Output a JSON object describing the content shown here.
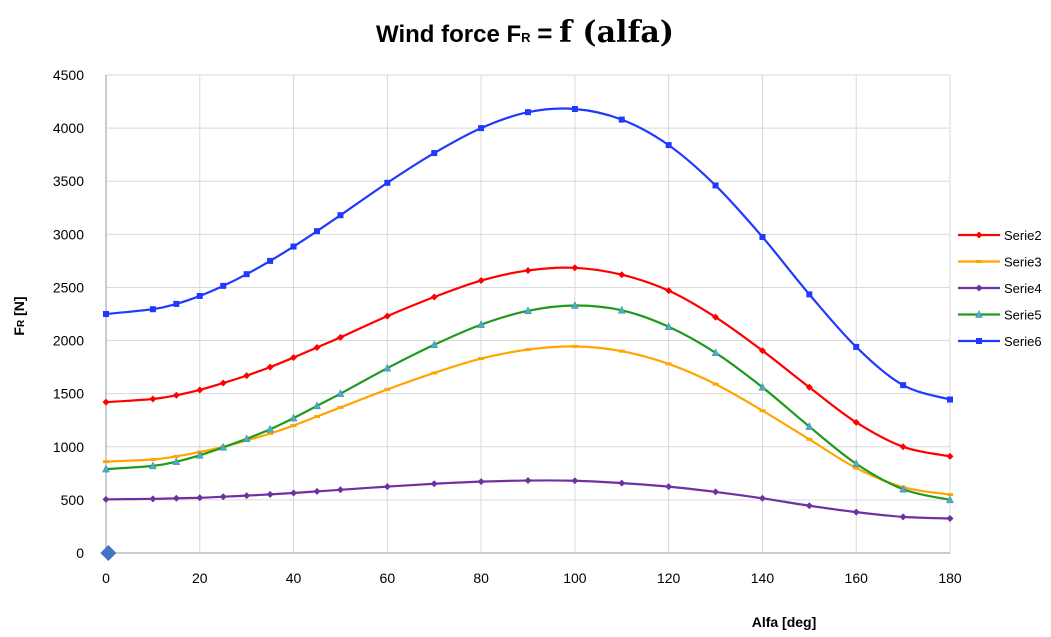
{
  "chart_data": {
    "type": "line",
    "title": {
      "text": "Wind force",
      "symbol": "F",
      "symbol_sub": "R",
      "equals": "=",
      "rhs": "f (alfa)"
    },
    "xlabel": "Alfa  [deg]",
    "ylabel": {
      "symbol": "F",
      "symbol_sub": "R",
      "unit": "[N]"
    },
    "xlim": [
      0,
      180
    ],
    "ylim": [
      0,
      4500
    ],
    "xticks": [
      0,
      20,
      40,
      60,
      80,
      100,
      120,
      140,
      160,
      180
    ],
    "yticks": [
      0,
      500,
      1000,
      1500,
      2000,
      2500,
      3000,
      3500,
      4000,
      4500
    ],
    "grid": "vertical and horizontal",
    "legend_position": "right",
    "extra_point": {
      "x": 0.5,
      "y": 0,
      "color": "#4472c4",
      "marker": "diamond"
    },
    "series": [
      {
        "name": "Serie2",
        "color": "#ff0000",
        "marker": "diamond",
        "x": [
          0,
          10,
          15,
          20,
          25,
          30,
          35,
          40,
          45,
          50,
          60,
          70,
          80,
          90,
          100,
          110,
          120,
          130,
          140,
          150,
          160,
          170,
          180
        ],
        "y": [
          1420,
          1450,
          1485,
          1535,
          1600,
          1670,
          1750,
          1840,
          1935,
          2030,
          2230,
          2410,
          2565,
          2660,
          2685,
          2620,
          2470,
          2220,
          1905,
          1560,
          1230,
          1000,
          910
        ]
      },
      {
        "name": "Serie3",
        "color": "#ffa500",
        "marker": "dash",
        "x": [
          0,
          10,
          15,
          20,
          25,
          30,
          35,
          40,
          45,
          50,
          60,
          70,
          80,
          90,
          100,
          110,
          120,
          130,
          140,
          150,
          160,
          170,
          180
        ],
        "y": [
          860,
          880,
          910,
          950,
          1000,
          1060,
          1125,
          1200,
          1285,
          1370,
          1540,
          1695,
          1830,
          1915,
          1945,
          1900,
          1780,
          1590,
          1340,
          1070,
          800,
          620,
          550
        ]
      },
      {
        "name": "Serie4",
        "color": "#7030a0",
        "marker": "diamond",
        "x": [
          0,
          10,
          15,
          20,
          25,
          30,
          35,
          40,
          45,
          50,
          60,
          70,
          80,
          90,
          100,
          110,
          120,
          130,
          140,
          150,
          160,
          170,
          180
        ],
        "y": [
          505,
          510,
          515,
          520,
          530,
          540,
          552,
          565,
          580,
          595,
          625,
          652,
          672,
          682,
          680,
          658,
          625,
          575,
          515,
          445,
          385,
          340,
          325
        ]
      },
      {
        "name": "Serie5",
        "color": "#1e9a1e",
        "marker": "triangle",
        "x": [
          0,
          10,
          15,
          20,
          25,
          30,
          35,
          40,
          45,
          50,
          60,
          70,
          80,
          90,
          100,
          110,
          120,
          130,
          140,
          150,
          160,
          170,
          180
        ],
        "y": [
          790,
          820,
          860,
          920,
          995,
          1075,
          1165,
          1270,
          1385,
          1500,
          1740,
          1960,
          2150,
          2280,
          2330,
          2285,
          2130,
          1885,
          1560,
          1190,
          840,
          600,
          500
        ]
      },
      {
        "name": "Serie6",
        "color": "#1f3aff",
        "marker": "square",
        "x": [
          0,
          10,
          15,
          20,
          25,
          30,
          35,
          40,
          45,
          50,
          60,
          70,
          80,
          90,
          100,
          110,
          120,
          130,
          140,
          150,
          160,
          170,
          180
        ],
        "y": [
          2250,
          2295,
          2345,
          2420,
          2515,
          2625,
          2750,
          2885,
          3030,
          3180,
          3485,
          3765,
          4000,
          4150,
          4180,
          4080,
          3840,
          3460,
          2975,
          2435,
          1940,
          1580,
          1445
        ]
      }
    ]
  }
}
